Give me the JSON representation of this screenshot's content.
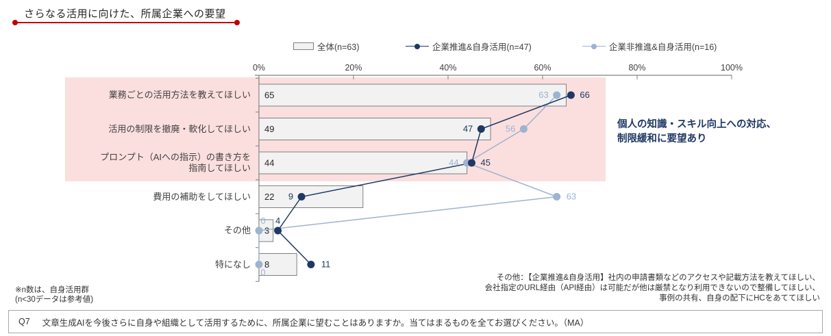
{
  "page": {
    "title": "さらなる活用に向けた、所属企業への要望"
  },
  "legend": {
    "items": [
      {
        "label": "全体(n=63)",
        "marker": "bar-swatch"
      },
      {
        "label": "企業推進&自身活用(n=47)",
        "marker": "line-dot-dark"
      },
      {
        "label": "企業非推進&自身活用(n=16)",
        "marker": "line-dot-light"
      }
    ]
  },
  "chart_data": {
    "type": "bar",
    "orientation": "horizontal bars with line-marker overlay",
    "unit": "%",
    "categories": [
      "業務ごとの活用方法を教えてほしい",
      "活用の制限を撤廃・軟化してほしい",
      "プロンプト（AIへの指示）の書き方を\n指南してほしい",
      "費用の補助をしてほしい",
      "その他",
      "特になし"
    ],
    "series": [
      {
        "name": "全体(n=63)",
        "type": "bar",
        "values": [
          65,
          49,
          44,
          22,
          3,
          8
        ]
      },
      {
        "name": "企業推進&自身活用(n=47)",
        "type": "line",
        "values": [
          66,
          47,
          45,
          9,
          4,
          11
        ]
      },
      {
        "name": "企業非推進&自身活用(n=16)",
        "type": "line",
        "values": [
          63,
          56,
          44,
          63,
          0,
          0
        ]
      }
    ],
    "x_axis": {
      "tick_labels": [
        "0%",
        "20%",
        "40%",
        "60%",
        "80%",
        "100%"
      ],
      "min": 0,
      "max": 100,
      "grid": false
    },
    "legend_position": "top",
    "highlighted_rows": [
      0,
      1,
      2
    ]
  },
  "annotation": {
    "lines": [
      "個人の知識・スキル向上への対応、",
      "制限緩和に要望あり"
    ]
  },
  "notes": {
    "left": [
      "※n数は、自身活用群",
      "(n<30データは参考値)"
    ],
    "right": [
      "その他：【企業推進&自身活用】社内の申請書類などのアクセスや記載方法を教えてほしい、",
      "会社指定のURL経由（API経由）は可能だが他は厳禁となり利用できないので整備してほしい、",
      "事例の共有、自身の配下にHCをあててほしい"
    ]
  },
  "question": {
    "label": "Q7",
    "text": "文章生成AIを今後さらに自身や組織として活用するために、所属企業に望むことはありますか。当てはまるものを全てお選びください。（MA）"
  },
  "colors": {
    "accent_red": "#C00000",
    "bar_fill": "#F2F2F2",
    "bar_border": "#7F7F7F",
    "series_dark": "#1F3864",
    "series_light": "#9DB3D0",
    "highlight_pink": "#FBDFDE",
    "axis": "#808080",
    "text_dark": "#333333"
  }
}
